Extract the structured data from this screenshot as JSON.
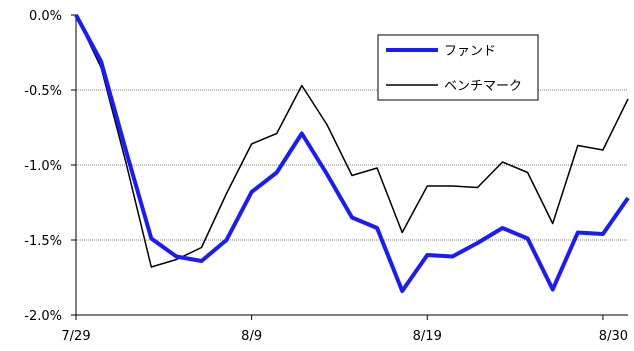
{
  "chart_data": {
    "type": "line",
    "title": "",
    "xlabel": "",
    "ylabel": "",
    "ylim": [
      -2.0,
      0.0
    ],
    "y_ticks": [
      "0.0%",
      "-0.5%",
      "-1.0%",
      "-1.5%",
      "-2.0%"
    ],
    "y_tick_values": [
      0.0,
      -0.5,
      -1.0,
      -1.5,
      -2.0
    ],
    "x_tick_labels": [
      "7/29",
      "8/9",
      "8/19",
      "8/30"
    ],
    "x_tick_indices": [
      0,
      7,
      14,
      21
    ],
    "grid": "horizontal dashed",
    "legend_position": "top-right",
    "colors": {
      "fund": "#1a1aff",
      "benchmark": "#000000"
    },
    "series": [
      {
        "name": "ファンド",
        "values": [
          0.0,
          -0.31,
          -0.91,
          -1.49,
          -1.61,
          -1.64,
          -1.5,
          -1.18,
          -1.05,
          -0.79,
          -1.06,
          -1.35,
          -1.42,
          -1.84,
          -1.6,
          -1.61,
          -1.52,
          -1.42,
          -1.49,
          -1.83,
          -1.45,
          -1.46,
          -1.22
        ]
      },
      {
        "name": "ベンチマーク",
        "values": [
          0.0,
          -0.35,
          -0.99,
          -1.68,
          -1.63,
          -1.55,
          -1.19,
          -0.86,
          -0.79,
          -0.47,
          -0.73,
          -1.07,
          -1.02,
          -1.45,
          -1.14,
          -1.14,
          -1.15,
          -0.98,
          -1.05,
          -1.39,
          -0.87,
          -0.9,
          -0.56
        ]
      }
    ]
  }
}
